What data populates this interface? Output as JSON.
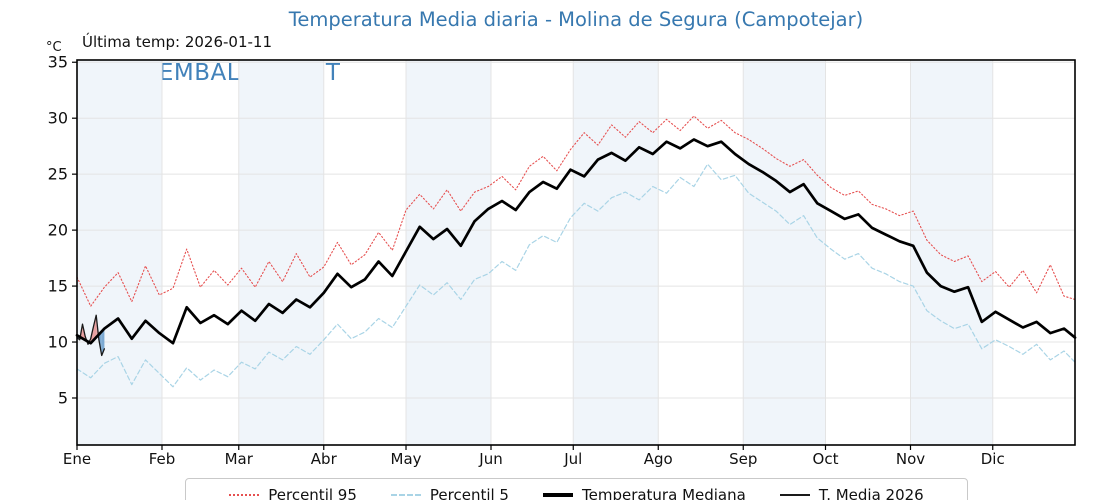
{
  "header": {
    "title": "Temperatura Media diaria - Molina de Segura (Campotejar)",
    "last_temp_label": "Última temp: 2026-01-11",
    "watermark": "WWW.EMBALSES.NET"
  },
  "colors": {
    "title": "#3778af",
    "watermark": "#3278b5",
    "band": "#f0f5fa",
    "grid": "#e4e4e4",
    "axis": "#000000",
    "tick_label": "#111111",
    "fill_above": "#e8a0a0",
    "fill_below": "#7ca9d2"
  },
  "chart_data": {
    "type": "line",
    "title": "Temperatura Media diaria - Molina de Segura (Campotejar)",
    "xlabel": "",
    "ylabel": "°C",
    "ylim": [
      0.8,
      35.2
    ],
    "yticks": [
      5,
      10,
      15,
      20,
      25,
      30,
      35
    ],
    "grid": true,
    "legend_position": "bottom",
    "month_labels": [
      "Ene",
      "Feb",
      "Mar",
      "Abr",
      "May",
      "Jun",
      "Jul",
      "Ago",
      "Sep",
      "Oct",
      "Nov",
      "Dic"
    ],
    "month_start_days": [
      1,
      32,
      60,
      91,
      121,
      152,
      182,
      213,
      244,
      274,
      305,
      335
    ],
    "days_per_year": 365,
    "x_days": [
      1,
      6,
      11,
      16,
      21,
      26,
      31,
      36,
      41,
      46,
      51,
      56,
      61,
      66,
      71,
      76,
      81,
      86,
      91,
      96,
      101,
      106,
      111,
      116,
      121,
      126,
      131,
      136,
      141,
      146,
      151,
      156,
      161,
      166,
      171,
      176,
      181,
      186,
      191,
      196,
      201,
      206,
      211,
      216,
      221,
      226,
      231,
      236,
      241,
      246,
      251,
      256,
      261,
      266,
      271,
      276,
      281,
      286,
      291,
      296,
      301,
      306,
      311,
      316,
      321,
      326,
      331,
      336,
      341,
      346,
      351,
      356,
      361,
      365
    ],
    "series": [
      {
        "name": "Percentil 95",
        "color": "#e65050",
        "style": "dotted",
        "width": 1.1,
        "values": [
          15.8,
          13.2,
          14.9,
          16.2,
          13.6,
          16.8,
          14.2,
          14.8,
          18.3,
          14.9,
          16.4,
          15.1,
          16.6,
          14.9,
          17.2,
          15.4,
          17.9,
          15.8,
          16.7,
          18.9,
          16.9,
          17.8,
          19.8,
          18.2,
          21.8,
          23.2,
          21.9,
          23.6,
          21.7,
          23.4,
          23.9,
          24.8,
          23.6,
          25.7,
          26.6,
          25.3,
          27.2,
          28.7,
          27.6,
          29.4,
          28.3,
          29.7,
          28.7,
          29.9,
          28.9,
          30.2,
          29.1,
          29.8,
          28.7,
          28.1,
          27.3,
          26.4,
          25.7,
          26.3,
          24.9,
          23.8,
          23.1,
          23.5,
          22.3,
          21.9,
          21.3,
          21.7,
          19.1,
          17.8,
          17.2,
          17.7,
          15.4,
          16.3,
          14.9,
          16.4,
          14.4,
          16.9,
          14.1,
          13.8
        ]
      },
      {
        "name": "Percentil 5",
        "color": "#a9d4e6",
        "style": "dashed",
        "width": 1.2,
        "values": [
          7.6,
          6.8,
          8.1,
          8.7,
          6.2,
          8.4,
          7.2,
          6.0,
          7.7,
          6.6,
          7.5,
          6.9,
          8.2,
          7.6,
          9.1,
          8.4,
          9.6,
          8.9,
          10.2,
          11.6,
          10.3,
          10.9,
          12.1,
          11.3,
          13.2,
          15.1,
          14.2,
          15.3,
          13.8,
          15.6,
          16.1,
          17.2,
          16.4,
          18.7,
          19.5,
          18.9,
          21.1,
          22.4,
          21.7,
          22.9,
          23.4,
          22.7,
          23.9,
          23.3,
          24.7,
          23.9,
          25.9,
          24.5,
          24.9,
          23.3,
          22.5,
          21.7,
          20.5,
          21.3,
          19.3,
          18.3,
          17.4,
          17.9,
          16.6,
          16.1,
          15.4,
          15.0,
          12.8,
          11.9,
          11.2,
          11.6,
          9.4,
          10.2,
          9.6,
          8.9,
          9.8,
          8.4,
          9.2,
          8.2
        ]
      },
      {
        "name": "Temperatura Mediana",
        "color": "#000000",
        "style": "solid",
        "width": 2.7,
        "values": [
          10.6,
          9.9,
          11.2,
          12.1,
          10.3,
          11.9,
          10.8,
          9.9,
          13.1,
          11.7,
          12.4,
          11.6,
          12.8,
          11.9,
          13.4,
          12.6,
          13.8,
          13.1,
          14.4,
          16.1,
          14.9,
          15.6,
          17.2,
          15.9,
          18.1,
          20.3,
          19.2,
          20.1,
          18.6,
          20.8,
          21.9,
          22.6,
          21.8,
          23.4,
          24.3,
          23.7,
          25.4,
          24.8,
          26.3,
          26.9,
          26.2,
          27.4,
          26.8,
          27.9,
          27.3,
          28.1,
          27.5,
          27.9,
          26.8,
          25.9,
          25.2,
          24.4,
          23.4,
          24.1,
          22.4,
          21.7,
          21.0,
          21.4,
          20.2,
          19.6,
          19.0,
          18.6,
          16.2,
          15.0,
          14.5,
          14.9,
          11.8,
          12.7,
          12.0,
          11.3,
          11.8,
          10.8,
          11.2,
          10.4
        ]
      },
      {
        "name": "T. Media 2026",
        "color": "#1a1a1a",
        "style": "solid",
        "width": 1.3,
        "x_days": [
          1,
          2,
          3,
          4,
          5,
          6,
          7,
          8,
          9,
          10,
          11
        ],
        "values": [
          10.4,
          10.2,
          11.6,
          10.5,
          9.8,
          10.3,
          11.4,
          12.4,
          10.2,
          8.8,
          9.4
        ]
      }
    ]
  }
}
